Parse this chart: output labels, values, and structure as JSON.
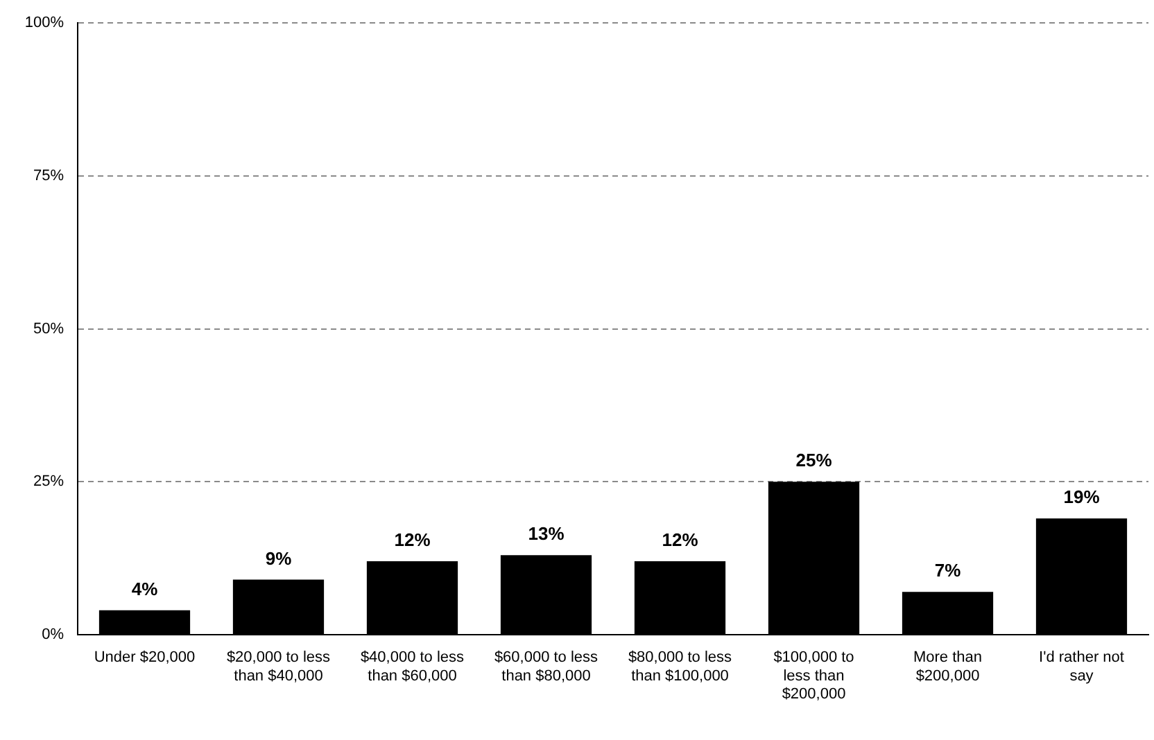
{
  "chart_data": {
    "type": "bar",
    "categories": [
      "Under $20,000",
      "$20,000 to less than $40,000",
      "$40,000 to less than $60,000",
      "$60,000 to less than $80,000",
      "$80,000 to less than $100,000",
      "$100,000 to less than $200,000",
      "More than $200,000",
      "I'd rather not say"
    ],
    "values": [
      4,
      9,
      12,
      13,
      12,
      25,
      7,
      19
    ],
    "value_labels": [
      "4%",
      "9%",
      "12%",
      "13%",
      "12%",
      "25%",
      "7%",
      "19%"
    ],
    "color": "#000000",
    "ylim": [
      0,
      100
    ],
    "yticks": [
      {
        "value": 0,
        "label": "0%"
      },
      {
        "value": 25,
        "label": "25%"
      },
      {
        "value": 50,
        "label": "50%"
      },
      {
        "value": 75,
        "label": "75%"
      },
      {
        "value": 100,
        "label": "100%"
      }
    ],
    "grid": "y"
  }
}
